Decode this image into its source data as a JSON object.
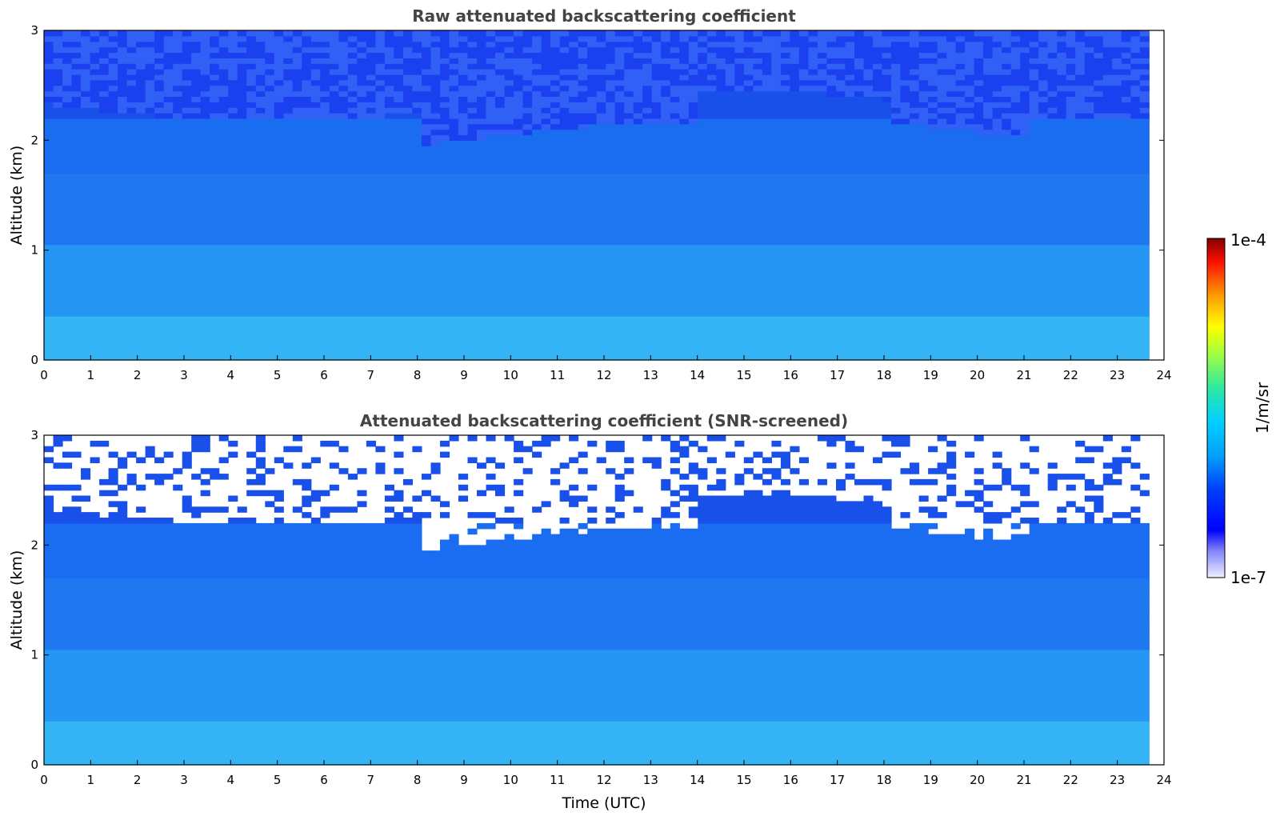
{
  "chart_data": [
    {
      "type": "heatmap",
      "title": "Raw attenuated backscattering coefficient",
      "xlabel": "",
      "ylabel": "Altitude (km)",
      "xlim": [
        0,
        24
      ],
      "ylim": [
        0,
        3
      ],
      "x_ticks": [
        "0",
        "1",
        "2",
        "3",
        "4",
        "5",
        "6",
        "7",
        "8",
        "9",
        "10",
        "11",
        "12",
        "13",
        "14",
        "15",
        "16",
        "17",
        "18",
        "19",
        "20",
        "21",
        "22",
        "23",
        "24"
      ],
      "y_ticks": [
        "0",
        "1",
        "2",
        "3"
      ],
      "data_end_x": 23.68,
      "screened": false
    },
    {
      "type": "heatmap",
      "title": "Attenuated backscattering coefficient (SNR-screened)",
      "xlabel": "Time (UTC)",
      "ylabel": "Altitude (km)",
      "xlim": [
        0,
        24
      ],
      "ylim": [
        0,
        3
      ],
      "x_ticks": [
        "0",
        "1",
        "2",
        "3",
        "4",
        "5",
        "6",
        "7",
        "8",
        "9",
        "10",
        "11",
        "12",
        "13",
        "14",
        "15",
        "16",
        "17",
        "18",
        "19",
        "20",
        "21",
        "22",
        "23",
        "24"
      ],
      "y_ticks": [
        "0",
        "1",
        "2",
        "3"
      ],
      "data_end_x": 23.68,
      "screened": true
    }
  ],
  "colorbar": {
    "min_label": "1e-7",
    "max_label": "1e-4",
    "label": "1/m/sr",
    "scale": "log",
    "colormap": "jet"
  },
  "colors": {
    "title": "#444444",
    "screen_white": "#ffffff"
  }
}
